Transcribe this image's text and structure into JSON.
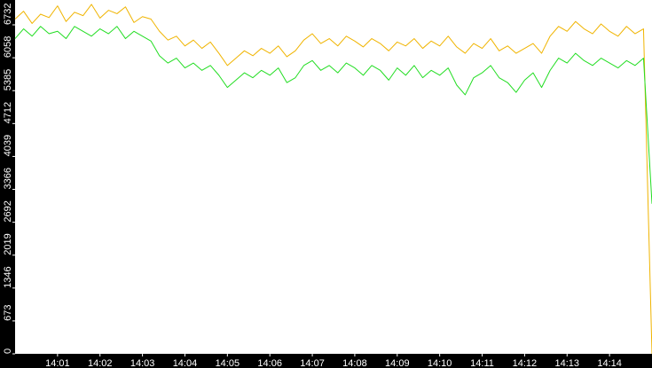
{
  "chart_data": {
    "type": "line",
    "x": [
      840,
      840.2,
      840.4,
      840.6,
      840.8,
      841,
      841.2,
      841.4,
      841.6,
      841.8,
      842,
      842.2,
      842.4,
      842.6,
      842.8,
      843,
      843.2,
      843.4,
      843.6,
      843.8,
      844,
      844.2,
      844.4,
      844.6,
      844.8,
      845,
      845.2,
      845.4,
      845.6,
      845.8,
      846,
      846.2,
      846.4,
      846.6,
      846.8,
      847,
      847.2,
      847.4,
      847.6,
      847.8,
      848,
      848.2,
      848.4,
      848.6,
      848.8,
      849,
      849.2,
      849.4,
      849.6,
      849.8,
      850,
      850.2,
      850.4,
      850.6,
      850.8,
      851,
      851.2,
      851.4,
      851.6,
      851.8,
      852,
      852.2,
      852.4,
      852.6,
      852.8,
      853,
      853.2,
      853.4,
      853.6,
      853.8,
      854,
      854.2,
      854.4,
      854.6,
      854.8,
      855
    ],
    "series": [
      {
        "color": "#f0b400",
        "values": [
          6850,
          7010,
          6760,
          6950,
          6880,
          7120,
          6800,
          6990,
          6920,
          7150,
          6870,
          7030,
          6960,
          7100,
          6780,
          6900,
          6850,
          6600,
          6420,
          6500,
          6300,
          6420,
          6250,
          6380,
          6150,
          5900,
          6050,
          6200,
          6100,
          6250,
          6150,
          6300,
          6080,
          6200,
          6420,
          6550,
          6350,
          6450,
          6300,
          6500,
          6400,
          6280,
          6450,
          6350,
          6200,
          6380,
          6300,
          6450,
          6250,
          6400,
          6300,
          6500,
          6280,
          6150,
          6350,
          6250,
          6450,
          6200,
          6300,
          6150,
          6250,
          6350,
          6150,
          6500,
          6700,
          6600,
          6800,
          6650,
          6550,
          6750,
          6600,
          6500,
          6700,
          6550,
          6650,
          0
        ]
      },
      {
        "color": "#22dd22",
        "values": [
          6450,
          6650,
          6500,
          6700,
          6550,
          6600,
          6450,
          6700,
          6600,
          6500,
          6650,
          6550,
          6700,
          6450,
          6600,
          6500,
          6400,
          6100,
          5950,
          6050,
          5850,
          5950,
          5800,
          5900,
          5700,
          5450,
          5600,
          5750,
          5650,
          5800,
          5700,
          5850,
          5550,
          5650,
          5900,
          6000,
          5800,
          5900,
          5750,
          5950,
          5850,
          5700,
          5900,
          5800,
          5600,
          5850,
          5700,
          5900,
          5650,
          5800,
          5700,
          5850,
          5500,
          5300,
          5650,
          5750,
          5900,
          5650,
          5550,
          5350,
          5600,
          5750,
          5450,
          5800,
          6050,
          5950,
          6150,
          6000,
          5900,
          6050,
          5950,
          5850,
          6000,
          5900,
          6050,
          3070
        ]
      }
    ],
    "xlim": [
      840,
      855
    ],
    "xticks": [
      {
        "value": 841,
        "label": "14:01"
      },
      {
        "value": 842,
        "label": "14:02"
      },
      {
        "value": 843,
        "label": "14:03"
      },
      {
        "value": 844,
        "label": "14:04"
      },
      {
        "value": 845,
        "label": "14:05"
      },
      {
        "value": 846,
        "label": "14:06"
      },
      {
        "value": 847,
        "label": "14:07"
      },
      {
        "value": 848,
        "label": "14:08"
      },
      {
        "value": 849,
        "label": "14:09"
      },
      {
        "value": 850,
        "label": "14:10"
      },
      {
        "value": 851,
        "label": "14:11"
      },
      {
        "value": 852,
        "label": "14:12"
      },
      {
        "value": 853,
        "label": "14:13"
      },
      {
        "value": 854,
        "label": "14:14"
      }
    ],
    "ylim": [
      0,
      7240
    ],
    "yticks": [
      0,
      673,
      1346,
      2019,
      2692,
      3366,
      4039,
      4712,
      5385,
      6058,
      6732
    ],
    "grid": false
  }
}
